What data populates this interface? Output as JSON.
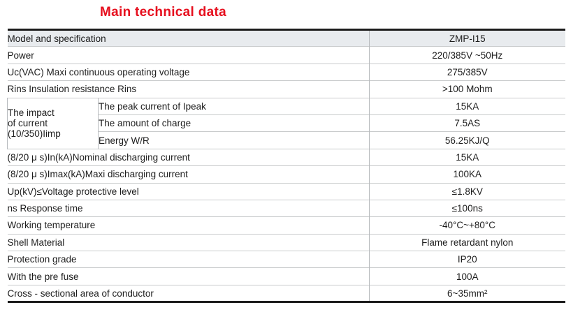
{
  "title": "Main technical data",
  "colors": {
    "title_red": "#e60f1e",
    "header_row_bg": "#e8ebee",
    "outer_border": "#1b1b1b",
    "row_separator": "#c9cbcc",
    "column_divider": "#b7babd",
    "text": "#1d1d1d"
  },
  "table": {
    "header": {
      "label": "Model and specification",
      "value": "ZMP-I15"
    },
    "impact_group": {
      "label_lines": [
        "The impact",
        "of current",
        "(10/350)Iimp"
      ]
    },
    "rows": [
      {
        "label": "Power",
        "value": "220/385V ~50Hz",
        "indent": 1
      },
      {
        "label": "Uc(VAC) Maxi continuous operating voltage",
        "value": "275/385V",
        "indent": 1
      },
      {
        "label": "Rins Insulation resistance Rins",
        "value": ">100 Mohm",
        "indent": 1
      },
      {
        "label": "The peak current of Ipeak",
        "value": "15KA",
        "group": "impact"
      },
      {
        "label": "The amount of charge",
        "value": "7.5AS",
        "group": "impact"
      },
      {
        "label": "Energy W/R",
        "value": "56.25KJ/Q",
        "group": "impact"
      },
      {
        "label": "(8/20 μ s)In(kA)Nominal discharging current",
        "value": "15KA",
        "indent": 2
      },
      {
        "label": "(8/20 μ s)Imax(kA)Maxi discharging current",
        "value": "100KA",
        "indent": 2
      },
      {
        "label": "Up(kV)≤Voltage protective level",
        "value": "≤1.8KV",
        "indent": 2
      },
      {
        "label": "ns Response time",
        "value": "≤100ns",
        "indent": 1
      },
      {
        "label": "Working temperature",
        "value": "-40°C~+80°C",
        "indent": 1
      },
      {
        "label": "Shell Material",
        "value": "Flame retardant nylon",
        "indent": 1
      },
      {
        "label": "Protection grade",
        "value": "IP20",
        "indent": 1
      },
      {
        "label": "With the pre fuse",
        "value": "100A",
        "indent": 1
      },
      {
        "label": "Cross - sectional area of conductor",
        "value": "6~35mm²",
        "indent": 1
      }
    ]
  }
}
